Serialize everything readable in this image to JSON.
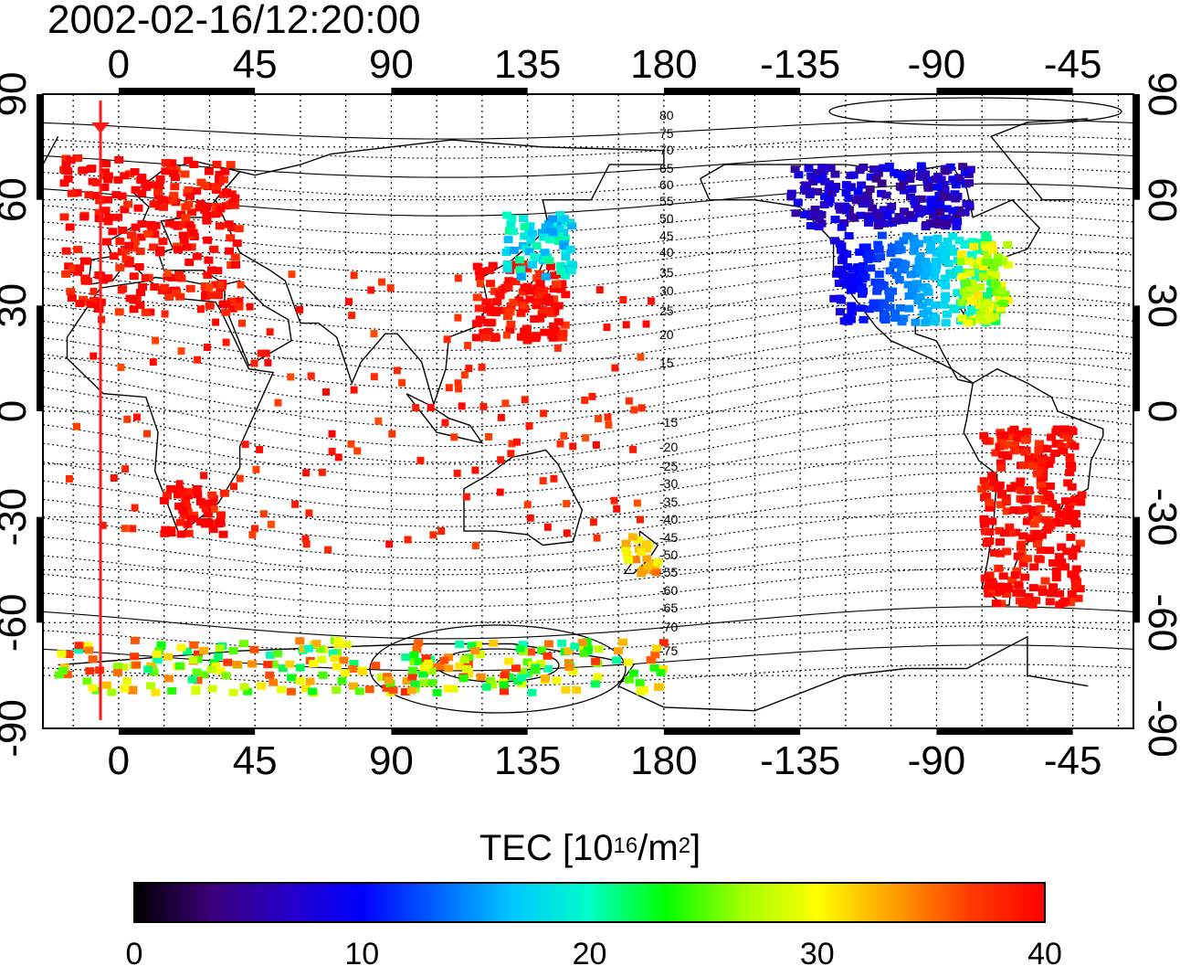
{
  "title": "2002-02-16/12:20:00",
  "map": {
    "lon_ticks_top": [
      "0",
      "45",
      "90",
      "135",
      "180",
      "-135",
      "-90",
      "-45"
    ],
    "lon_ticks_bottom": [
      "0",
      "45",
      "90",
      "135",
      "180",
      "-135",
      "-90",
      "-45"
    ],
    "lat_ticks_left": [
      "90",
      "60",
      "30",
      "0",
      "-30",
      "-60",
      "-90"
    ],
    "lat_ticks_right": [
      "90",
      "60",
      "30",
      "0",
      "-30",
      "-60",
      "-90"
    ],
    "contour_labels": [
      "80",
      "75",
      "70",
      "65",
      "60",
      "55",
      "50",
      "45",
      "40",
      "35",
      "30",
      "25",
      "20",
      "15",
      "-15",
      "-20",
      "-25",
      "-30",
      "-35",
      "-40",
      "-45",
      "-50",
      "-55",
      "-60",
      "-65",
      "-70",
      "-75"
    ],
    "marker_longitude": -6,
    "colors": {
      "high_tec": "#ff1a1a",
      "marker_line": "#ff1a1a",
      "grid": "#000000"
    },
    "tec_regions": [
      {
        "name": "europe",
        "lon": [
          -18,
          40
        ],
        "lat": [
          28,
          72
        ],
        "tec": 40
      },
      {
        "name": "east-asia",
        "lon": [
          118,
          148
        ],
        "lat": [
          20,
          42
        ],
        "tec": 40
      },
      {
        "name": "japan",
        "lon": [
          128,
          150
        ],
        "lat": [
          38,
          56
        ],
        "tec": 18
      },
      {
        "name": "canada",
        "lon": [
          -138,
          -78
        ],
        "lat": [
          52,
          70
        ],
        "tec": 7
      },
      {
        "name": "usa",
        "lon": [
          -124,
          -70
        ],
        "lat": [
          25,
          50
        ],
        "tec": 11
      },
      {
        "name": "us-east",
        "lon": [
          -82,
          -66
        ],
        "lat": [
          25,
          48
        ],
        "tec": 28
      },
      {
        "name": "south-america",
        "lon": [
          -75,
          -42
        ],
        "lat": [
          -55,
          -5
        ],
        "tec": 40
      },
      {
        "name": "south-africa",
        "lon": [
          15,
          35
        ],
        "lat": [
          -35,
          -22
        ],
        "tec": 40
      },
      {
        "name": "new-zealand",
        "lon": [
          167,
          178
        ],
        "lat": [
          -46,
          -35
        ],
        "tec": 32
      },
      {
        "name": "antarctica-ring",
        "lon": [
          -20,
          180
        ],
        "lat": [
          -80,
          -65
        ],
        "tec": 30
      }
    ]
  },
  "colorbar": {
    "label_main": "TEC  [10",
    "label_exp": "16",
    "label_unit": "/m",
    "label_unit_exp": "2",
    "label_close": "]",
    "min": 0,
    "max": 40,
    "ticks": [
      "0",
      "10",
      "20",
      "30",
      "40"
    ],
    "stops": [
      "#000000",
      "#3c0078",
      "#2800c8",
      "#0000ff",
      "#0064ff",
      "#00c8ff",
      "#00ffc8",
      "#00ff00",
      "#a0ff00",
      "#ffff00",
      "#ffa000",
      "#ff3c00",
      "#ff0000"
    ]
  }
}
